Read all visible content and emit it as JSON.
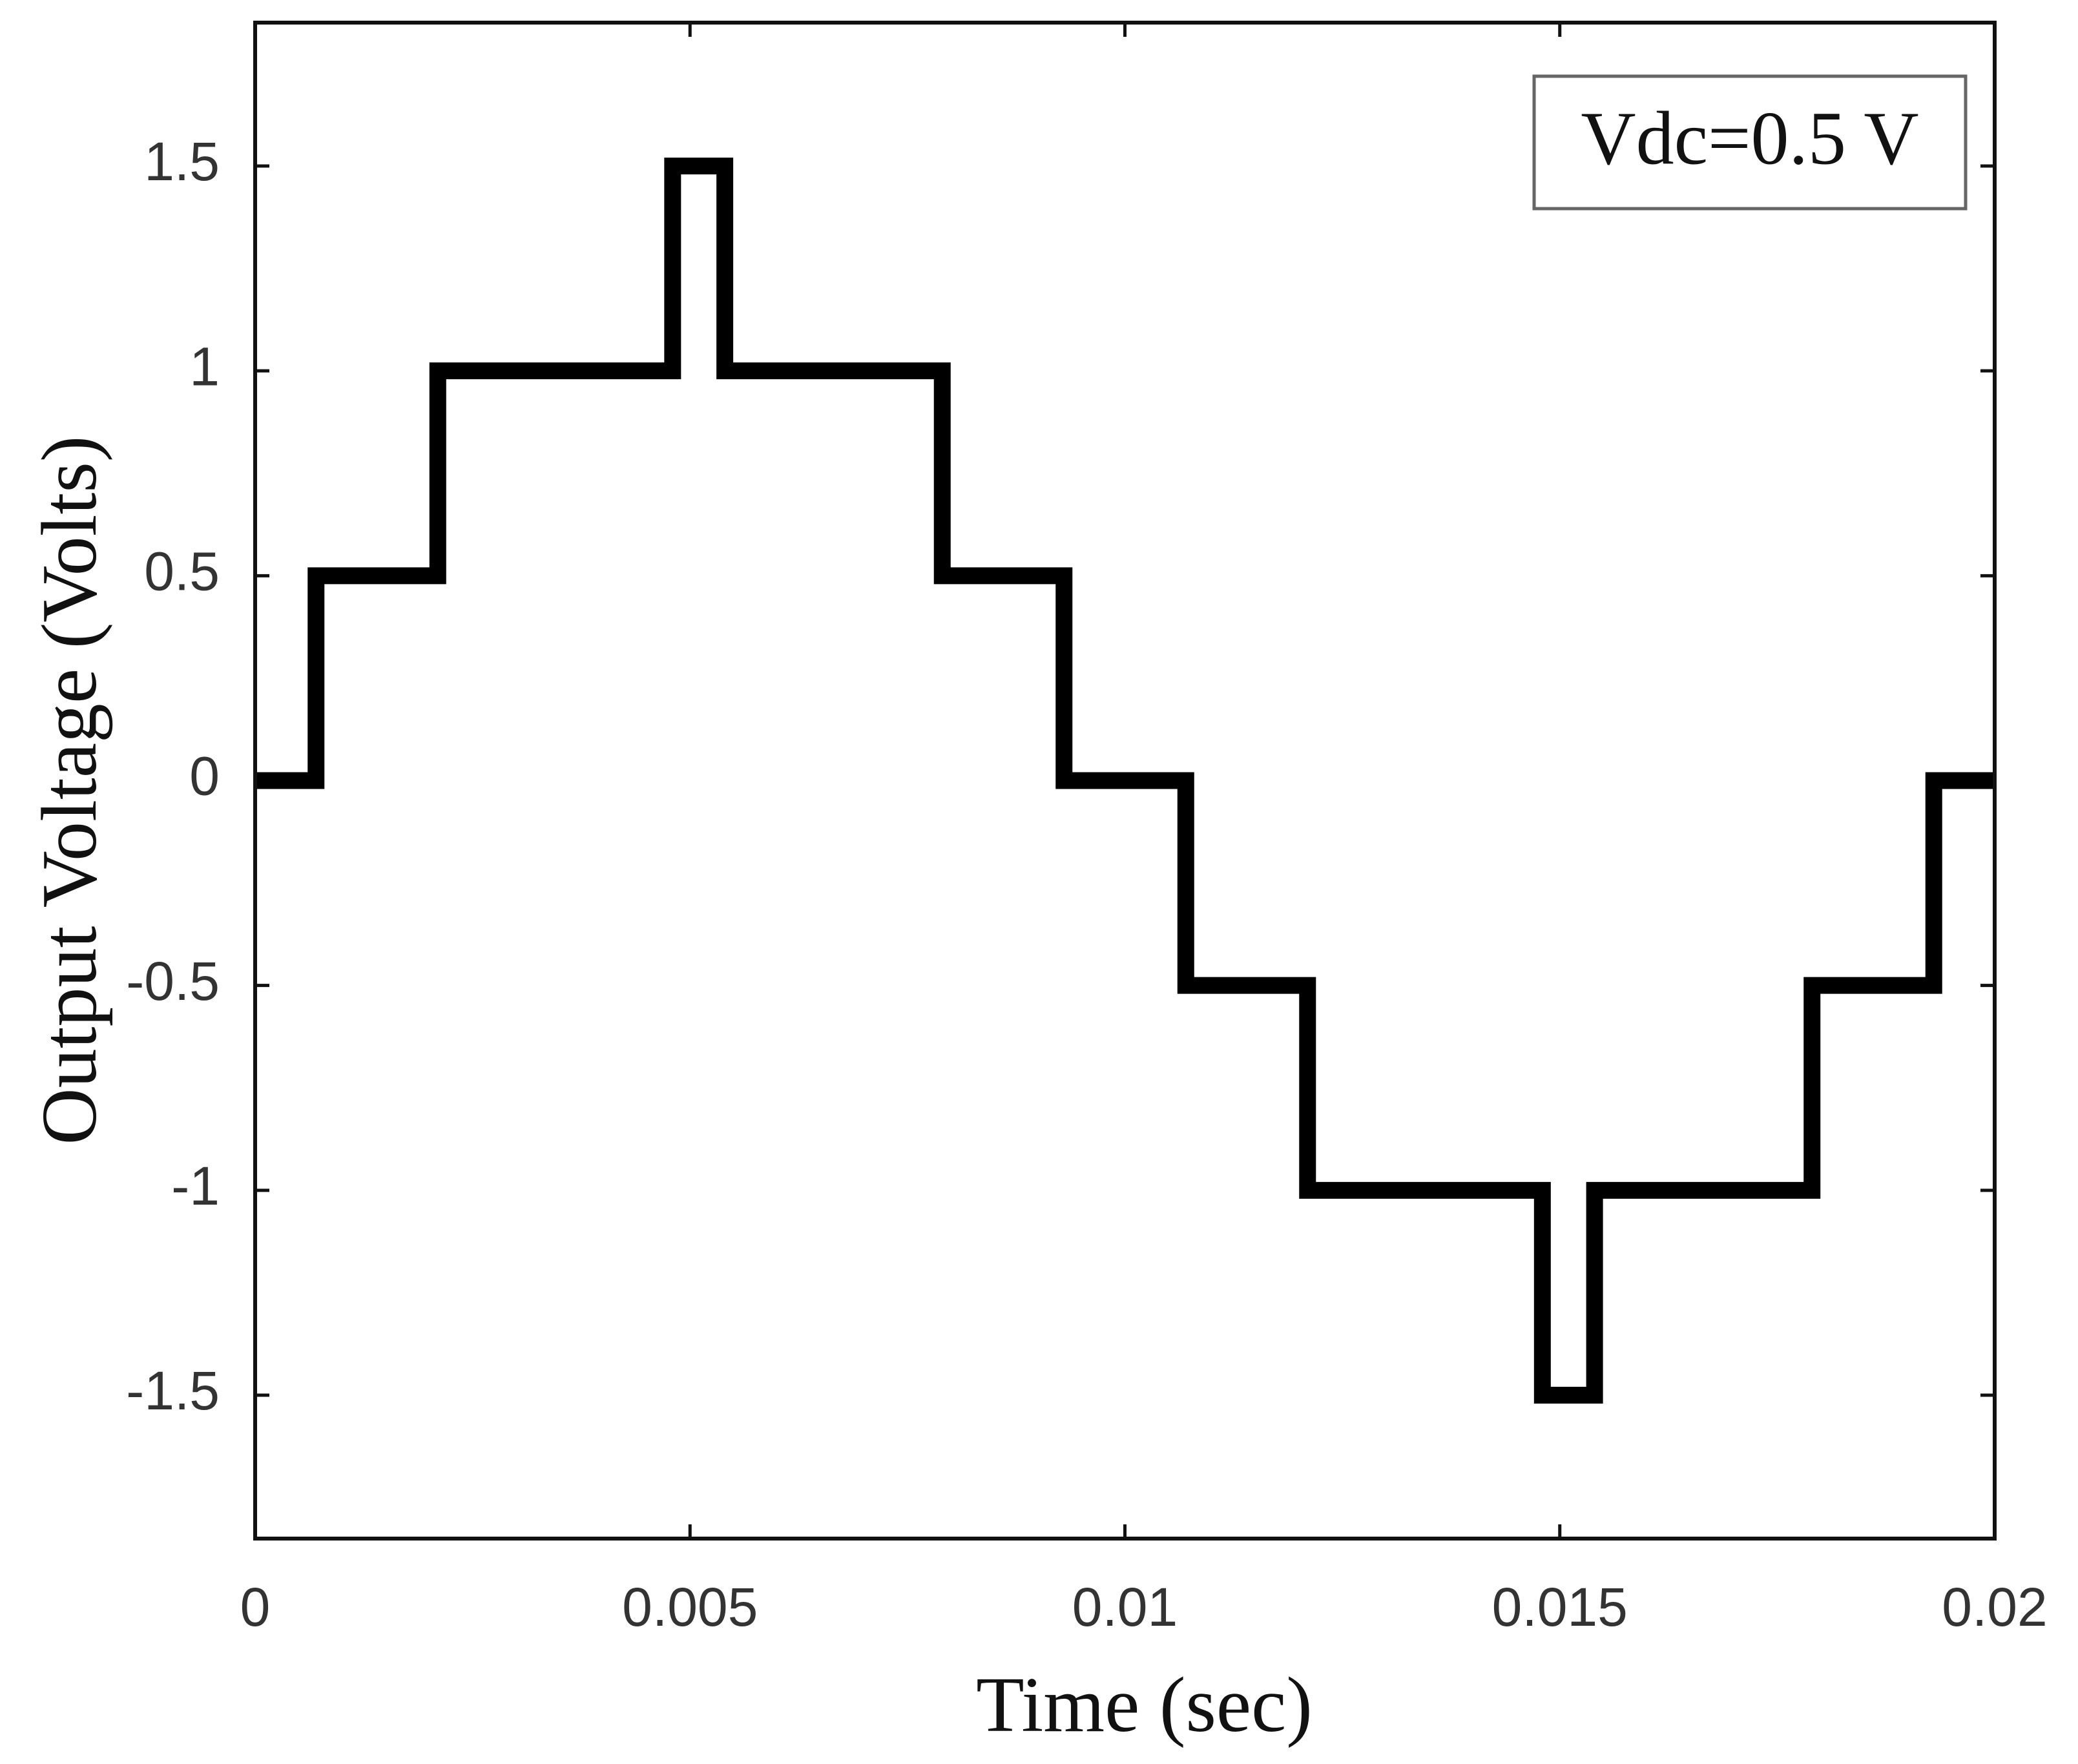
{
  "chart_data": {
    "type": "line",
    "step": true,
    "xlabel": "Time (sec)",
    "ylabel": "Output Voltage (Volts)",
    "xlim": [
      0,
      0.02
    ],
    "ylim": [
      -1.85,
      1.85
    ],
    "xticks": [
      0,
      0.005,
      0.01,
      0.015,
      0.02
    ],
    "xtick_labels": [
      "0",
      "0.005",
      "0.01",
      "0.015",
      "0.02"
    ],
    "yticks": [
      1.5,
      1,
      0.5,
      0,
      -0.5,
      -1,
      -1.5
    ],
    "ytick_labels": [
      "1.5",
      "1",
      "0.5",
      "0",
      "-0.5",
      "-1",
      "-1.5"
    ],
    "grid": false,
    "annotation": "Vdc=0.5 V",
    "annotation_position": "top-right",
    "series_color": "#000000",
    "series": [
      {
        "x": [
          0,
          0.0007,
          0.0021,
          0.0048,
          0.0054,
          0.0079,
          0.0093,
          0.0107,
          0.0121,
          0.0148,
          0.0154,
          0.0179,
          0.0193,
          0.02
        ],
        "y": [
          0,
          0.5,
          1,
          1.5,
          1,
          0.5,
          0,
          -0.5,
          -1,
          -1.5,
          -1,
          -0.5,
          0,
          0
        ]
      }
    ]
  }
}
